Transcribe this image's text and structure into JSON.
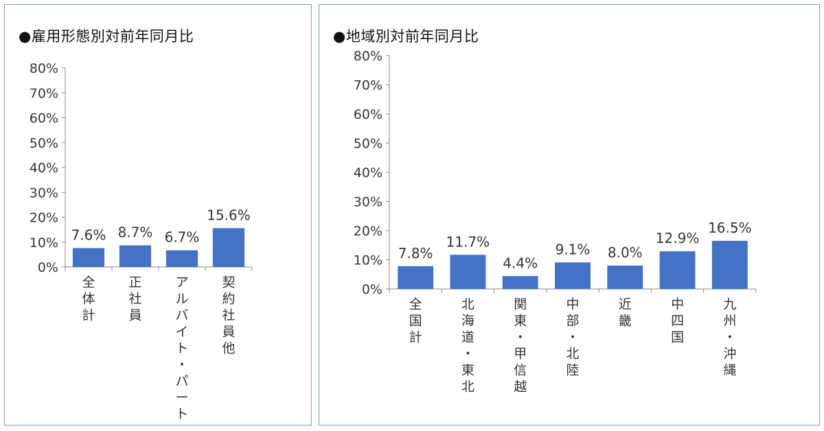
{
  "colors": {
    "bar": "#4472C4",
    "axis": "#888888",
    "border": "#7f96b3"
  },
  "chart_data": [
    {
      "type": "bar",
      "title": "●雇用形態別対前年同月比",
      "categories": [
        "全体計",
        "正社員",
        "アルバイト・パート",
        "契約社員他"
      ],
      "values": [
        7.6,
        8.7,
        6.7,
        15.6
      ],
      "data_labels": [
        "7.6%",
        "8.7%",
        "6.7%",
        "15.6%"
      ],
      "ylim": [
        0,
        80
      ],
      "yticks": [
        "0%",
        "10%",
        "20%",
        "30%",
        "40%",
        "50%",
        "60%",
        "70%",
        "80%"
      ],
      "grid": false,
      "legend": "none"
    },
    {
      "type": "bar",
      "title": "●地域別対前年同月比",
      "categories": [
        "全国計",
        "北海道・東北",
        "関東・甲信越",
        "中部・北陸",
        "近畿",
        "中四国",
        "九州・沖縄"
      ],
      "values": [
        7.8,
        11.7,
        4.4,
        9.1,
        8.0,
        12.9,
        16.5
      ],
      "data_labels": [
        "7.8%",
        "11.7%",
        "4.4%",
        "9.1%",
        "8.0%",
        "12.9%",
        "16.5%"
      ],
      "ylim": [
        0,
        80
      ],
      "yticks": [
        "0%",
        "10%",
        "20%",
        "30%",
        "40%",
        "50%",
        "60%",
        "70%",
        "80%"
      ],
      "grid": false,
      "legend": "none"
    }
  ]
}
